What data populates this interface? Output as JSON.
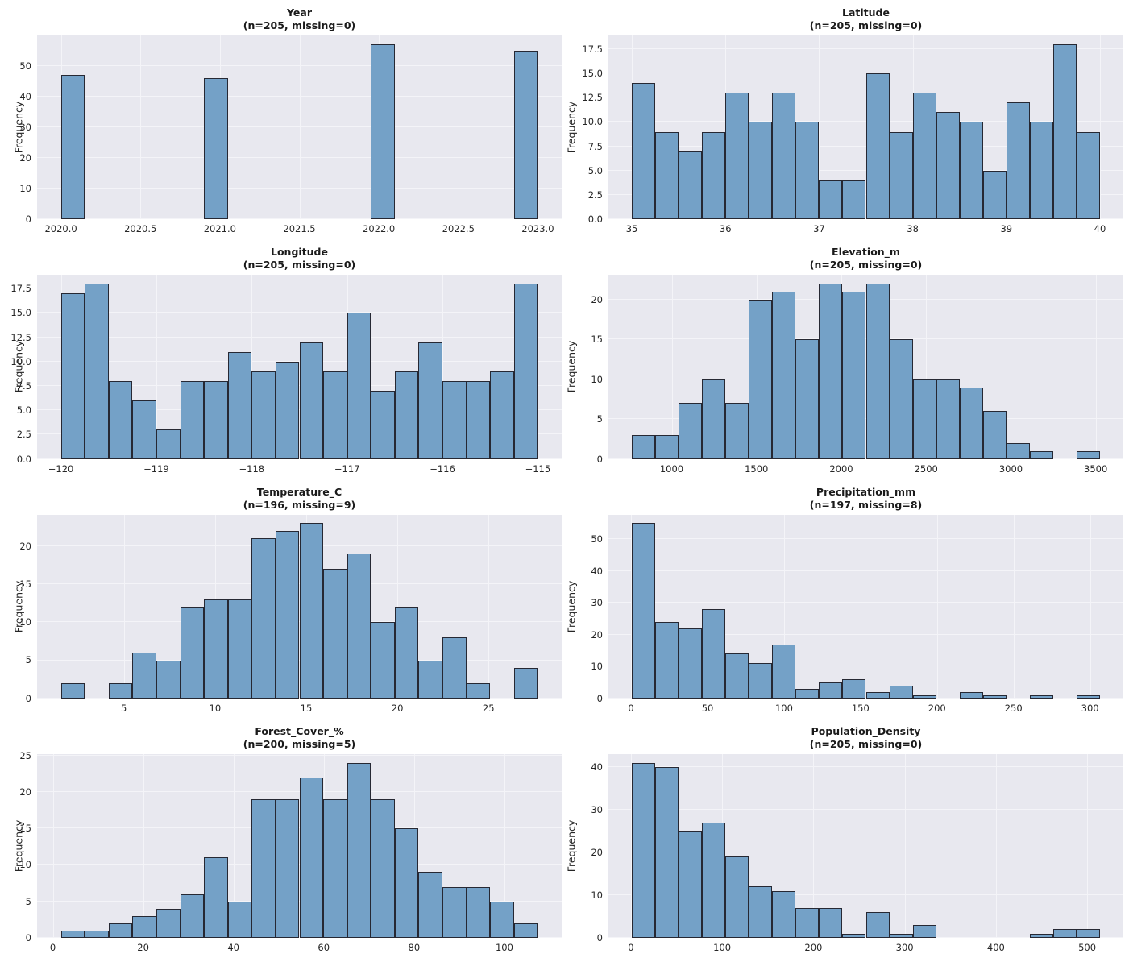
{
  "style": {
    "figure_background": "#ffffff",
    "axes_background": "#e8e8ef",
    "grid_color": "#f4f4f8",
    "bar_fill": "#74a1c7",
    "bar_edge": "#262833",
    "text_color": "#262626",
    "title_color": "#1a1a1a"
  },
  "chart_data": [
    {
      "type": "bar",
      "key": "year",
      "title": "Year",
      "subtitle": "(n=205, missing=0)",
      "ylabel": "Frequency",
      "bins": {
        "start": 2020,
        "end": 2023
      },
      "values": [
        47,
        0,
        0,
        0,
        0,
        0,
        46,
        0,
        0,
        0,
        0,
        0,
        0,
        57,
        0,
        0,
        0,
        0,
        0,
        55
      ],
      "xlim": [
        2019.85,
        2023.15
      ],
      "ylim": [
        0,
        59.85
      ],
      "xticks": {
        "values": [
          2020.0,
          2020.5,
          2021.0,
          2021.5,
          2022.0,
          2022.5,
          2023.0
        ],
        "labels": [
          "2020.0",
          "2020.5",
          "2021.0",
          "2021.5",
          "2022.0",
          "2022.5",
          "2023.0"
        ]
      },
      "yticks": {
        "values": [
          0,
          10,
          20,
          30,
          40,
          50
        ],
        "labels": [
          "0",
          "10",
          "20",
          "30",
          "40",
          "50"
        ]
      }
    },
    {
      "type": "bar",
      "key": "latitude",
      "title": "Latitude",
      "subtitle": "(n=205, missing=0)",
      "ylabel": "Frequency",
      "bins": {
        "start": 35,
        "end": 40
      },
      "values": [
        14,
        9,
        7,
        9,
        13,
        10,
        13,
        10,
        4,
        4,
        15,
        9,
        13,
        11,
        10,
        5,
        12,
        10,
        18,
        9
      ],
      "xlim": [
        34.75,
        40.25
      ],
      "ylim": [
        0,
        18.9
      ],
      "xticks": {
        "values": [
          35,
          36,
          37,
          38,
          39,
          40
        ],
        "labels": [
          "35",
          "36",
          "37",
          "38",
          "39",
          "40"
        ]
      },
      "yticks": {
        "values": [
          0,
          2.5,
          5,
          7.5,
          10,
          12.5,
          15,
          17.5
        ],
        "labels": [
          "0.0",
          "2.5",
          "5.0",
          "7.5",
          "10.0",
          "12.5",
          "15.0",
          "17.5"
        ]
      }
    },
    {
      "type": "bar",
      "key": "longitude",
      "title": "Longitude",
      "subtitle": "(n=205, missing=0)",
      "ylabel": "Frequency",
      "bins": {
        "start": -120,
        "end": -115
      },
      "values": [
        17,
        18,
        8,
        6,
        3,
        8,
        8,
        11,
        9,
        10,
        12,
        9,
        15,
        7,
        9,
        12,
        8,
        8,
        9,
        18
      ],
      "xlim": [
        -120.25,
        -114.75
      ],
      "ylim": [
        0,
        18.9
      ],
      "xticks": {
        "values": [
          -120,
          -119,
          -118,
          -117,
          -116,
          -115
        ],
        "labels": [
          "−120",
          "−119",
          "−118",
          "−117",
          "−116",
          "−115"
        ]
      },
      "yticks": {
        "values": [
          0,
          2.5,
          5,
          7.5,
          10,
          12.5,
          15,
          17.5
        ],
        "labels": [
          "0.0",
          "2.5",
          "5.0",
          "7.5",
          "10.0",
          "12.5",
          "15.0",
          "17.5"
        ]
      }
    },
    {
      "type": "bar",
      "key": "elevation_m",
      "title": "Elevation_m",
      "subtitle": "(n=205, missing=0)",
      "ylabel": "Frequency",
      "bins": {
        "start": 765,
        "end": 3525
      },
      "values": [
        3,
        3,
        7,
        10,
        7,
        20,
        21,
        15,
        22,
        21,
        22,
        15,
        10,
        10,
        9,
        6,
        2,
        1,
        0,
        1
      ],
      "xlim": [
        627,
        3663
      ],
      "ylim": [
        0,
        23.1
      ],
      "xticks": {
        "values": [
          1000,
          1500,
          2000,
          2500,
          3000,
          3500
        ],
        "labels": [
          "1000",
          "1500",
          "2000",
          "2500",
          "3000",
          "3500"
        ]
      },
      "yticks": {
        "values": [
          0,
          5,
          10,
          15,
          20
        ],
        "labels": [
          "0",
          "5",
          "10",
          "15",
          "20"
        ]
      }
    },
    {
      "type": "bar",
      "key": "temperature_c",
      "title": "Temperature_C",
      "subtitle": "(n=196, missing=9)",
      "ylabel": "Frequency",
      "bins": {
        "start": 1.55,
        "end": 27.7
      },
      "values": [
        2,
        0,
        2,
        6,
        5,
        12,
        13,
        13,
        21,
        22,
        23,
        17,
        19,
        10,
        12,
        5,
        8,
        2,
        0,
        4
      ],
      "xlim": [
        0.24,
        29.01
      ],
      "ylim": [
        0,
        24.15
      ],
      "xticks": {
        "values": [
          5,
          10,
          15,
          20,
          25
        ],
        "labels": [
          "5",
          "10",
          "15",
          "20",
          "25"
        ]
      },
      "yticks": {
        "values": [
          0,
          5,
          10,
          15,
          20
        ],
        "labels": [
          "0",
          "5",
          "10",
          "15",
          "20"
        ]
      }
    },
    {
      "type": "bar",
      "key": "precipitation_mm",
      "title": "Precipitation_mm",
      "subtitle": "(n=197, missing=8)",
      "ylabel": "Frequency",
      "bins": {
        "start": 0.5,
        "end": 306.5
      },
      "values": [
        55,
        24,
        22,
        28,
        14,
        11,
        17,
        3,
        5,
        6,
        2,
        4,
        1,
        0,
        2,
        1,
        0,
        1,
        0,
        1
      ],
      "xlim": [
        -14.8,
        321.8
      ],
      "ylim": [
        0,
        57.75
      ],
      "xticks": {
        "values": [
          0,
          50,
          100,
          150,
          200,
          250,
          300
        ],
        "labels": [
          "0",
          "50",
          "100",
          "150",
          "200",
          "250",
          "300"
        ]
      },
      "yticks": {
        "values": [
          0,
          10,
          20,
          30,
          40,
          50
        ],
        "labels": [
          "0",
          "10",
          "20",
          "30",
          "40",
          "50"
        ]
      }
    },
    {
      "type": "bar",
      "key": "forest_cover_pct",
      "title": "Forest_Cover_%",
      "subtitle": "(n=200, missing=5)",
      "ylabel": "Frequency",
      "bins": {
        "start": 1.8,
        "end": 107.4
      },
      "values": [
        1,
        1,
        2,
        3,
        4,
        6,
        11,
        5,
        19,
        19,
        22,
        19,
        24,
        19,
        15,
        9,
        7,
        7,
        5,
        2
      ],
      "xlim": [
        -3.48,
        112.68
      ],
      "ylim": [
        0,
        25.2
      ],
      "xticks": {
        "values": [
          0,
          20,
          40,
          60,
          80,
          100
        ],
        "labels": [
          "0",
          "20",
          "40",
          "60",
          "80",
          "100"
        ]
      },
      "yticks": {
        "values": [
          0,
          5,
          10,
          15,
          20,
          25
        ],
        "labels": [
          "0",
          "5",
          "10",
          "15",
          "20",
          "25"
        ]
      }
    },
    {
      "type": "bar",
      "key": "population_density",
      "title": "Population_Density",
      "subtitle": "(n=205, missing=0)",
      "ylabel": "Frequency",
      "bins": {
        "start": 1,
        "end": 514
      },
      "values": [
        41,
        40,
        25,
        27,
        19,
        12,
        11,
        7,
        7,
        1,
        6,
        1,
        3,
        0,
        0,
        0,
        0,
        1,
        2,
        2
      ],
      "xlim": [
        -24.65,
        539.65
      ],
      "ylim": [
        0,
        43.05
      ],
      "xticks": {
        "values": [
          0,
          100,
          200,
          300,
          400,
          500
        ],
        "labels": [
          "0",
          "100",
          "200",
          "300",
          "400",
          "500"
        ]
      },
      "yticks": {
        "values": [
          0,
          10,
          20,
          30,
          40
        ],
        "labels": [
          "0",
          "10",
          "20",
          "30",
          "40"
        ]
      }
    }
  ]
}
